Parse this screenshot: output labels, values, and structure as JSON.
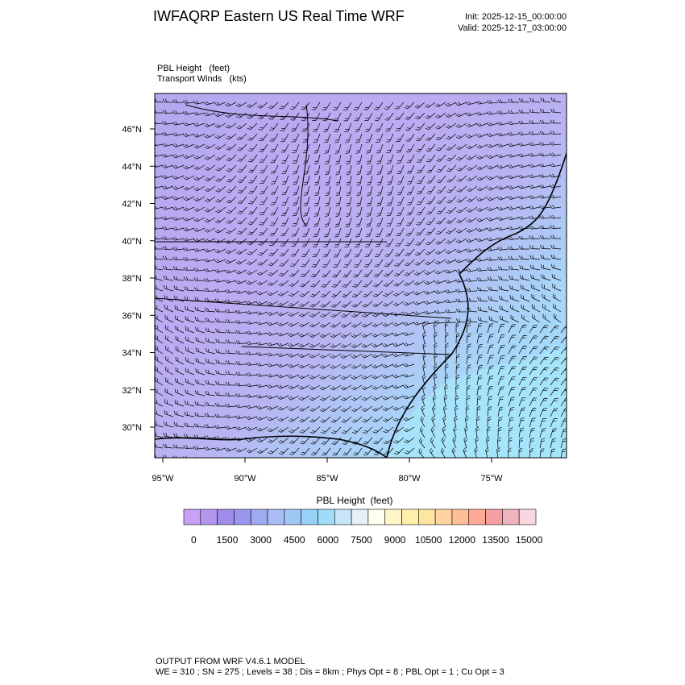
{
  "header": {
    "title": "IWFAQRP Eastern US Real Time WRF",
    "init": "Init: 2025-12-15_00:00:00",
    "valid": "Valid: 2025-12-17_03:00:00"
  },
  "map": {
    "field_label": "PBL Height   (feet)",
    "vector_label": "Transport Winds   (kts)",
    "lat_labels": [
      "46°N",
      "44°N",
      "42°N",
      "40°N",
      "38°N",
      "36°N",
      "34°N",
      "32°N",
      "30°N"
    ],
    "lon_labels": [
      "95°W",
      "90°W",
      "85°W",
      "80°W",
      "75°W"
    ]
  },
  "colorbar": {
    "title": "PBL Height  (feet)",
    "ticks": [
      0,
      1500,
      3000,
      4500,
      6000,
      7500,
      9000,
      10500,
      12000,
      13500,
      15000
    ],
    "colors": [
      "#c8a0f5",
      "#b496f0",
      "#a08ceb",
      "#9a96f0",
      "#a0aaf0",
      "#aabef5",
      "#a0c8f5",
      "#96d2f8",
      "#a0dcf8",
      "#c8e6f8",
      "#e6f0f8",
      "#fffff0",
      "#fff5c8",
      "#fff0aa",
      "#ffe6a0",
      "#ffd2a0",
      "#ffbe96",
      "#ffaa96",
      "#f5a0a0",
      "#f0b4be",
      "#f8d8de"
    ]
  },
  "footer": {
    "line1": "OUTPUT FROM WRF V4.6.1 MODEL",
    "line2": "WE = 310 ; SN = 275 ; Levels = 38 ; Dis = 8km ; Phys Opt = 8 ; PBL Opt = 1 ; Cu Opt = 3"
  }
}
